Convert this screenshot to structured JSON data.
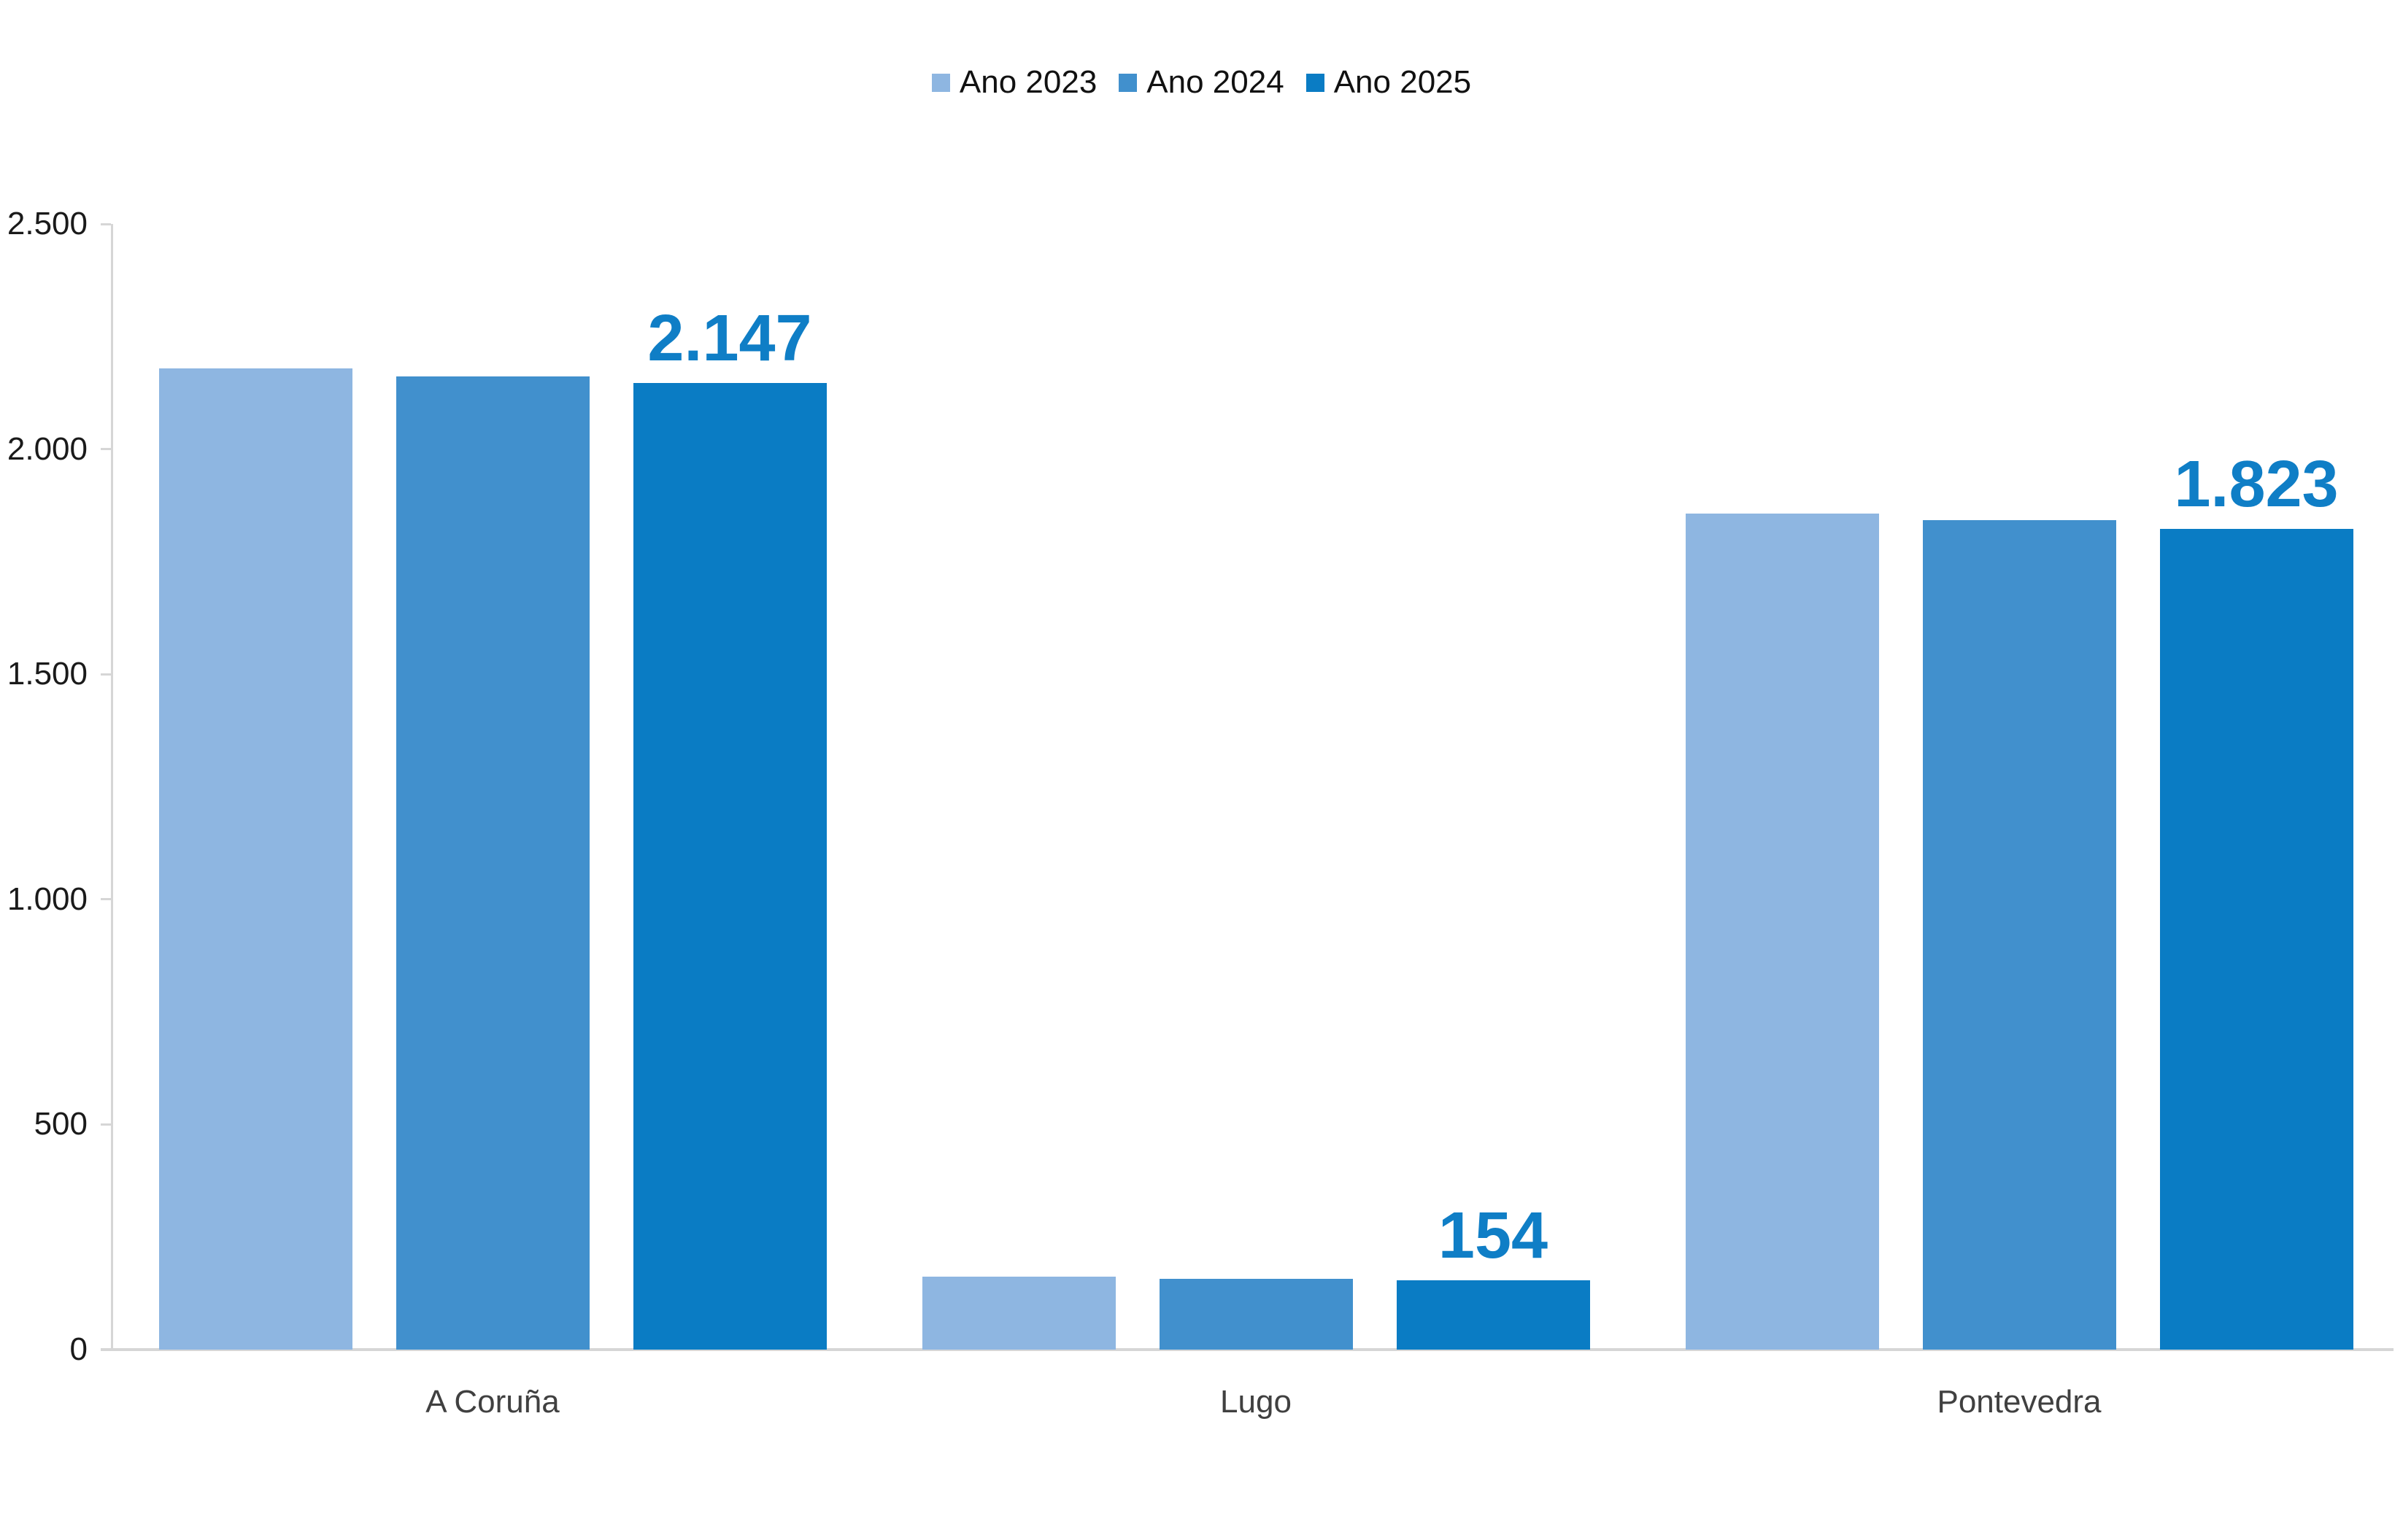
{
  "chart_data": {
    "type": "bar",
    "title": "",
    "categories": [
      "A Coruña",
      "Lugo",
      "Pontevedra"
    ],
    "series": [
      {
        "name": "Ano 2023",
        "color": "#8EB6E1",
        "values": [
          2180,
          162,
          1857
        ]
      },
      {
        "name": "Ano 2024",
        "color": "#4190CD",
        "values": [
          2162,
          157,
          1842
        ]
      },
      {
        "name": "Ano 2025",
        "color": "#0A7CC4",
        "values": [
          2147,
          154,
          1823
        ]
      }
    ],
    "data_labels": {
      "on_series": "Ano 2025",
      "values": [
        "2.147",
        "154",
        "1.823"
      ],
      "color": "#0F7EC6"
    },
    "y_axis": {
      "tick_labels": [
        "2.500",
        "2.000",
        "1.500",
        "1.000",
        "500",
        "0"
      ],
      "tick_values": [
        2500,
        2000,
        1500,
        1000,
        500,
        0
      ],
      "min": 0,
      "max": 2500
    },
    "legend": {
      "position": "top",
      "entries": [
        "Ano 2023",
        "Ano 2024",
        "Ano 2025"
      ]
    },
    "grid": false,
    "colors": {
      "axis": "#D6D6D6",
      "y_tick_text": "#1A1A1A",
      "category_text": "#404040"
    }
  }
}
